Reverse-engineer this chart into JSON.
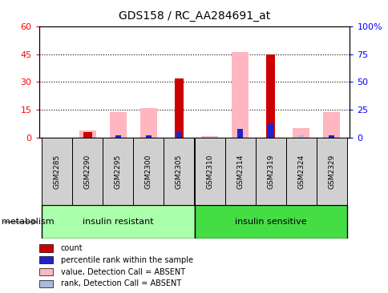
{
  "title": "GDS158 / RC_AA284691_at",
  "samples": [
    "GSM2285",
    "GSM2290",
    "GSM2295",
    "GSM2300",
    "GSM2305",
    "GSM2310",
    "GSM2314",
    "GSM2319",
    "GSM2324",
    "GSM2329"
  ],
  "count": [
    0,
    3,
    0,
    0,
    32,
    0,
    0,
    45,
    0,
    0
  ],
  "rank": [
    0,
    0,
    2,
    2,
    5,
    0,
    8,
    13,
    0,
    2
  ],
  "value_absent": [
    0,
    4,
    14,
    16,
    0,
    1,
    46,
    0,
    5,
    14
  ],
  "rank_absent": [
    0,
    0,
    0,
    2,
    0,
    0,
    0,
    0,
    2,
    2
  ],
  "ylim_left": [
    0,
    60
  ],
  "ylim_right": [
    0,
    100
  ],
  "yticks_left": [
    0,
    15,
    30,
    45,
    60
  ],
  "yticks_right": [
    0,
    25,
    50,
    75,
    100
  ],
  "ytick_labels_left": [
    "0",
    "15",
    "30",
    "45",
    "60"
  ],
  "ytick_labels_right": [
    "0",
    "25",
    "50",
    "75",
    "100%"
  ],
  "color_count": "#CC0000",
  "color_rank": "#2222CC",
  "color_value_absent": "#FFB6C1",
  "color_rank_absent": "#AABBDD",
  "group1_label": "insulin resistant",
  "group2_label": "insulin sensitive",
  "group1_color": "#AAFFAA",
  "group2_color": "#44DD44",
  "group_label": "metabolism",
  "legend": [
    {
      "color": "#CC0000",
      "label": "count"
    },
    {
      "color": "#2222CC",
      "label": "percentile rank within the sample"
    },
    {
      "color": "#FFB6C1",
      "label": "value, Detection Call = ABSENT"
    },
    {
      "color": "#AABBDD",
      "label": "rank, Detection Call = ABSENT"
    }
  ]
}
